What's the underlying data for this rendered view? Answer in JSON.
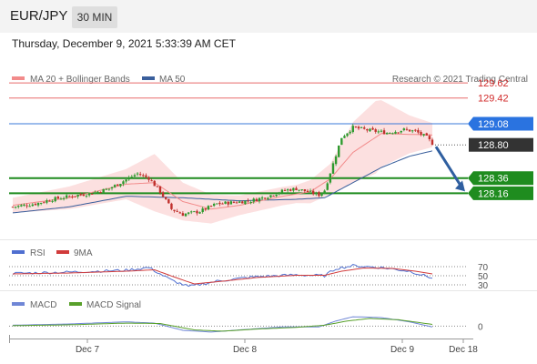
{
  "header": {
    "symbol": "EUR/JPY",
    "timeframe": "30 MIN",
    "datetime": "Thursday, December 9, 2021 5:33:39 AM CET"
  },
  "legend": {
    "ma20": "MA 20 + Bollinger Bands",
    "ma50": "MA 50",
    "copyright": "Research © 2021 Trading Central",
    "rsi": "RSI",
    "rsi_ma": "9MA",
    "macd": "MACD",
    "macd_signal": "MACD Signal"
  },
  "colors": {
    "up": "#2e9a2e",
    "down": "#c0302c",
    "resistance": "#e86a6a",
    "pivot": "#3a78d8",
    "support": "#1f8c1f",
    "ma50": "#3a5f9c",
    "ma20": "#f28b8b",
    "band": "#fbd6d6",
    "rsi": "#4f6fd0",
    "rsi_ma": "#d13b3b",
    "macd": "#6f86d6",
    "macd_signal": "#58a02a",
    "last": "#333333",
    "arrow": "#2f5fa0"
  },
  "chart_data": [
    {
      "type": "candlestick",
      "title": "EUR/JPY 30 MIN",
      "x_ticks": [
        "Dec 7",
        "Dec 8",
        "Dec 9",
        "Dec 18"
      ],
      "ylim": [
        127.55,
        129.85
      ],
      "levels": [
        {
          "label": "129.62",
          "value": 129.62,
          "kind": "resistance"
        },
        {
          "label": "129.42",
          "value": 129.42,
          "kind": "resistance"
        },
        {
          "label": "129.08",
          "value": 129.08,
          "kind": "pivot"
        },
        {
          "label": "128.80",
          "value": 128.8,
          "kind": "last"
        },
        {
          "label": "128.36",
          "value": 128.36,
          "kind": "support"
        },
        {
          "label": "128.16",
          "value": 128.16,
          "kind": "support"
        }
      ],
      "close_anchors": [
        [
          0,
          127.98
        ],
        [
          8,
          128.02
        ],
        [
          14,
          128.08
        ],
        [
          22,
          128.13
        ],
        [
          28,
          128.16
        ],
        [
          34,
          128.22
        ],
        [
          40,
          128.34
        ],
        [
          44,
          128.42
        ],
        [
          48,
          128.36
        ],
        [
          52,
          128.18
        ],
        [
          56,
          127.95
        ],
        [
          60,
          127.88
        ],
        [
          66,
          127.92
        ],
        [
          72,
          128.02
        ],
        [
          78,
          128.04
        ],
        [
          84,
          128.06
        ],
        [
          90,
          128.12
        ],
        [
          96,
          128.2
        ],
        [
          100,
          128.22
        ],
        [
          104,
          128.18
        ],
        [
          108,
          128.14
        ],
        [
          110,
          128.2
        ],
        [
          113,
          128.55
        ],
        [
          116,
          128.9
        ],
        [
          120,
          129.03
        ],
        [
          126,
          128.99
        ],
        [
          132,
          128.96
        ],
        [
          138,
          129.0
        ],
        [
          142,
          128.98
        ],
        [
          146,
          128.9
        ],
        [
          148,
          128.82
        ]
      ],
      "ma20_anchors": [
        [
          0,
          128.0
        ],
        [
          20,
          128.1
        ],
        [
          40,
          128.28
        ],
        [
          50,
          128.3
        ],
        [
          60,
          128.05
        ],
        [
          70,
          127.95
        ],
        [
          80,
          128.0
        ],
        [
          95,
          128.12
        ],
        [
          105,
          128.18
        ],
        [
          112,
          128.35
        ],
        [
          120,
          128.7
        ],
        [
          130,
          128.95
        ],
        [
          148,
          128.93
        ]
      ],
      "ma50_anchors": [
        [
          0,
          127.9
        ],
        [
          20,
          127.98
        ],
        [
          40,
          128.12
        ],
        [
          60,
          128.1
        ],
        [
          80,
          128.06
        ],
        [
          100,
          128.08
        ],
        [
          110,
          128.1
        ],
        [
          120,
          128.3
        ],
        [
          130,
          128.5
        ],
        [
          140,
          128.65
        ],
        [
          148,
          128.72
        ]
      ],
      "band_width_anchors": [
        [
          0,
          0.1
        ],
        [
          40,
          0.2
        ],
        [
          50,
          0.38
        ],
        [
          60,
          0.25
        ],
        [
          80,
          0.13
        ],
        [
          100,
          0.12
        ],
        [
          112,
          0.2
        ],
        [
          120,
          0.4
        ],
        [
          128,
          0.48
        ],
        [
          140,
          0.25
        ],
        [
          148,
          0.16
        ]
      ]
    },
    {
      "type": "line",
      "title": "RSI",
      "levels": [
        {
          "label": "70",
          "value": 70
        },
        {
          "label": "50",
          "value": 50
        },
        {
          "label": "30",
          "value": 30
        }
      ],
      "ylim": [
        20,
        80
      ],
      "series": [
        {
          "name": "RSI",
          "anchors": [
            [
              0,
              55
            ],
            [
              20,
              58
            ],
            [
              40,
              62
            ],
            [
              48,
              68
            ],
            [
              56,
              40
            ],
            [
              62,
              26
            ],
            [
              72,
              38
            ],
            [
              84,
              47
            ],
            [
              100,
              52
            ],
            [
              110,
              50
            ],
            [
              114,
              66
            ],
            [
              120,
              72
            ],
            [
              130,
              68
            ],
            [
              140,
              60
            ],
            [
              148,
              45
            ]
          ]
        },
        {
          "name": "9MA",
          "anchors": [
            [
              0,
              54
            ],
            [
              20,
              56
            ],
            [
              40,
              60
            ],
            [
              50,
              63
            ],
            [
              58,
              45
            ],
            [
              64,
              32
            ],
            [
              74,
              38
            ],
            [
              86,
              46
            ],
            [
              100,
              51
            ],
            [
              110,
              51
            ],
            [
              116,
              60
            ],
            [
              124,
              67
            ],
            [
              134,
              66
            ],
            [
              142,
              60
            ],
            [
              148,
              54
            ]
          ]
        }
      ]
    },
    {
      "type": "line",
      "title": "MACD",
      "levels": [
        {
          "label": "0",
          "value": 0
        }
      ],
      "ylim": [
        -0.25,
        0.35
      ],
      "series": [
        {
          "name": "MACD",
          "anchors": [
            [
              0,
              0.02
            ],
            [
              20,
              0.05
            ],
            [
              40,
              0.1
            ],
            [
              50,
              0.07
            ],
            [
              60,
              -0.1
            ],
            [
              70,
              -0.14
            ],
            [
              80,
              -0.09
            ],
            [
              95,
              -0.02
            ],
            [
              108,
              -0.02
            ],
            [
              114,
              0.12
            ],
            [
              120,
              0.22
            ],
            [
              130,
              0.2
            ],
            [
              140,
              0.1
            ],
            [
              148,
              -0.02
            ]
          ]
        },
        {
          "name": "MACD Signal",
          "anchors": [
            [
              0,
              0.01
            ],
            [
              20,
              0.03
            ],
            [
              40,
              0.07
            ],
            [
              52,
              0.06
            ],
            [
              64,
              -0.09
            ],
            [
              74,
              -0.12
            ],
            [
              86,
              -0.07
            ],
            [
              100,
              -0.03
            ],
            [
              110,
              0.02
            ],
            [
              118,
              0.12
            ],
            [
              126,
              0.18
            ],
            [
              136,
              0.15
            ],
            [
              148,
              0.04
            ]
          ]
        }
      ]
    }
  ]
}
